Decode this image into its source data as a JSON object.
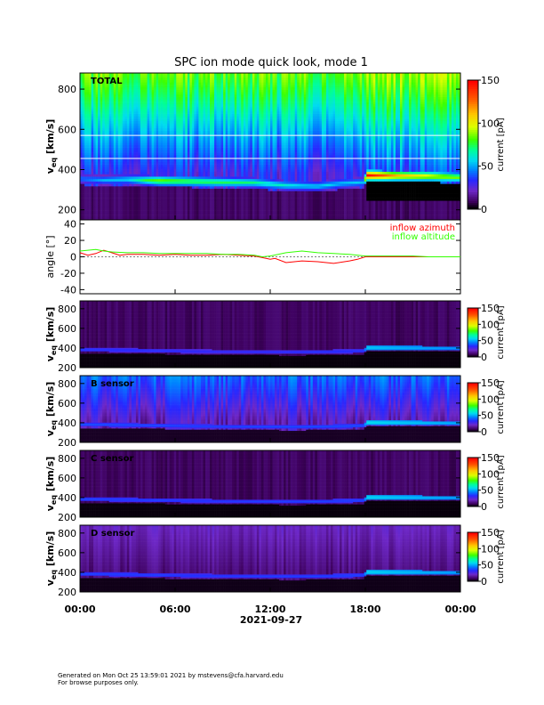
{
  "figure": {
    "title": "SPC ion mode quick look, mode 1",
    "date_label": "2021-09-27",
    "footer": [
      "Generated on Mon Oct 25 13:59:01 2021 by mstevens@cfa.harvard.edu",
      "For browse purposes only."
    ]
  },
  "chart_data": [
    {
      "type": "heatmap",
      "panel_label": "TOTAL",
      "ylabel_main": "v",
      "ylabel_sub": "eq",
      "ylabel_unit": "[km/s]",
      "ylim": [
        150,
        880
      ],
      "yticks": [
        "200",
        "400",
        "600",
        "800"
      ],
      "yticks_v": [
        200,
        400,
        600,
        800
      ],
      "colorbar": {
        "label": "current [pA]",
        "range": [
          0,
          150
        ],
        "ticks": [
          "0",
          "50",
          "100",
          "150"
        ],
        "ticks_v": [
          0,
          50,
          100,
          150
        ]
      },
      "background": "low",
      "marker_lines_v": [
        455,
        570
      ],
      "beam_profile": [
        {
          "t": 0,
          "v": 355
        },
        {
          "t": 1.5,
          "v": 348
        },
        {
          "t": 3,
          "v": 352
        },
        {
          "t": 5,
          "v": 345
        },
        {
          "t": 7,
          "v": 342
        },
        {
          "t": 9,
          "v": 338
        },
        {
          "t": 11,
          "v": 336
        },
        {
          "t": 13,
          "v": 322
        },
        {
          "t": 15,
          "v": 318
        },
        {
          "t": 16.5,
          "v": 332
        },
        {
          "t": 17.9,
          "v": 338
        },
        {
          "t": 18.1,
          "v": 372
        },
        {
          "t": 20,
          "v": 370
        },
        {
          "t": 22,
          "v": 368
        },
        {
          "t": 24,
          "v": 362
        }
      ],
      "beam_peak": [
        {
          "t": 0,
          "c": 45
        },
        {
          "t": 3,
          "c": 60
        },
        {
          "t": 5,
          "c": 90
        },
        {
          "t": 10,
          "c": 75
        },
        {
          "t": 14,
          "c": 60
        },
        {
          "t": 17.9,
          "c": 55
        },
        {
          "t": 18.1,
          "c": 150
        },
        {
          "t": 20,
          "c": 120
        },
        {
          "t": 24,
          "c": 90
        }
      ]
    },
    {
      "type": "line",
      "ylabel": "angle [°]",
      "ylim": [
        -45,
        45
      ],
      "yticks": [
        "-40",
        "-20",
        "0",
        "20",
        "40"
      ],
      "yticks_v": [
        -40,
        -20,
        0,
        20,
        40
      ],
      "series": [
        {
          "name": "inflow azimuth",
          "color": "#ff0000",
          "points": [
            [
              0,
              5
            ],
            [
              0.5,
              2
            ],
            [
              1,
              4
            ],
            [
              1.5,
              8
            ],
            [
              2,
              5
            ],
            [
              2.5,
              2
            ],
            [
              3,
              3
            ],
            [
              4,
              3
            ],
            [
              5,
              2
            ],
            [
              6,
              3
            ],
            [
              7,
              2
            ],
            [
              8,
              2
            ],
            [
              9,
              3
            ],
            [
              10,
              2
            ],
            [
              11,
              1
            ],
            [
              11.5,
              -1
            ],
            [
              12,
              -3
            ],
            [
              12.3,
              -2
            ],
            [
              13,
              -7
            ],
            [
              14,
              -5
            ],
            [
              15,
              -6
            ],
            [
              16,
              -8
            ],
            [
              17,
              -5
            ],
            [
              17.5,
              -3
            ],
            [
              18,
              0
            ],
            [
              19,
              0
            ],
            [
              20,
              0
            ],
            [
              21,
              0
            ],
            [
              22,
              0
            ],
            [
              23,
              0
            ],
            [
              24,
              0
            ]
          ]
        },
        {
          "name": "inflow altitude",
          "color": "#33ff00",
          "points": [
            [
              0,
              7
            ],
            [
              0.5,
              8
            ],
            [
              1,
              9
            ],
            [
              1.5,
              7
            ],
            [
              2,
              6
            ],
            [
              3,
              5
            ],
            [
              4,
              5
            ],
            [
              5,
              4
            ],
            [
              6,
              4
            ],
            [
              7,
              4
            ],
            [
              8,
              4
            ],
            [
              9,
              3
            ],
            [
              10,
              3
            ],
            [
              11,
              2
            ],
            [
              11.5,
              0
            ],
            [
              12,
              1
            ],
            [
              12.5,
              3
            ],
            [
              13,
              5
            ],
            [
              14,
              7
            ],
            [
              15,
              5
            ],
            [
              16,
              4
            ],
            [
              17,
              3
            ],
            [
              18,
              1
            ],
            [
              19,
              1
            ],
            [
              20,
              1
            ],
            [
              21,
              1
            ],
            [
              22,
              0
            ],
            [
              23,
              0
            ],
            [
              24,
              0
            ]
          ]
        }
      ]
    },
    {
      "type": "heatmap",
      "panel_label": "",
      "ylabel_main": "v",
      "ylabel_sub": "eq",
      "ylabel_unit": "[km/s]",
      "ylim": [
        200,
        880
      ],
      "yticks": [
        "200",
        "400",
        "600",
        "800"
      ],
      "yticks_v": [
        200,
        400,
        600,
        800
      ],
      "colorbar": {
        "label": "current [pA]",
        "range": [
          0,
          150
        ],
        "ticks": [
          "0",
          "50",
          "100",
          "150"
        ],
        "ticks_v": [
          0,
          50,
          100,
          150
        ]
      },
      "background": "dark",
      "beam_profile": [
        {
          "t": 0,
          "v": 385
        },
        {
          "t": 3,
          "v": 380
        },
        {
          "t": 7,
          "v": 368
        },
        {
          "t": 11,
          "v": 362
        },
        {
          "t": 14,
          "v": 360
        },
        {
          "t": 17.9,
          "v": 372
        },
        {
          "t": 18.1,
          "v": 405
        },
        {
          "t": 24,
          "v": 400
        }
      ],
      "beam_peak": [
        {
          "t": 0,
          "c": 28
        },
        {
          "t": 10,
          "c": 25
        },
        {
          "t": 17.9,
          "c": 28
        },
        {
          "t": 18.1,
          "c": 48
        },
        {
          "t": 24,
          "c": 40
        }
      ]
    },
    {
      "type": "heatmap",
      "panel_label": "B sensor",
      "ylabel_main": "v",
      "ylabel_sub": "eq",
      "ylabel_unit": "[km/s]",
      "ylim": [
        200,
        880
      ],
      "yticks": [
        "200",
        "400",
        "600",
        "800"
      ],
      "yticks_v": [
        200,
        400,
        600,
        800
      ],
      "colorbar": {
        "label": "current [pA]",
        "range": [
          0,
          150
        ],
        "ticks": [
          "0",
          "50",
          "100",
          "150"
        ],
        "ticks_v": [
          0,
          50,
          100,
          150
        ]
      },
      "background": "bright",
      "beam_profile": [
        {
          "t": 0,
          "v": 385
        },
        {
          "t": 3,
          "v": 380
        },
        {
          "t": 7,
          "v": 368
        },
        {
          "t": 11,
          "v": 362
        },
        {
          "t": 14,
          "v": 360
        },
        {
          "t": 17.9,
          "v": 372
        },
        {
          "t": 18.1,
          "v": 405
        },
        {
          "t": 24,
          "v": 400
        }
      ],
      "beam_peak": [
        {
          "t": 0,
          "c": 30
        },
        {
          "t": 10,
          "c": 28
        },
        {
          "t": 17.9,
          "c": 30
        },
        {
          "t": 18.1,
          "c": 50
        },
        {
          "t": 24,
          "c": 42
        }
      ]
    },
    {
      "type": "heatmap",
      "panel_label": "C sensor",
      "ylabel_main": "v",
      "ylabel_sub": "eq",
      "ylabel_unit": "[km/s]",
      "ylim": [
        200,
        880
      ],
      "yticks": [
        "200",
        "400",
        "600",
        "800"
      ],
      "yticks_v": [
        200,
        400,
        600,
        800
      ],
      "colorbar": {
        "label": "current [pA]",
        "range": [
          0,
          150
        ],
        "ticks": [
          "0",
          "50",
          "100",
          "150"
        ],
        "ticks_v": [
          0,
          50,
          100,
          150
        ]
      },
      "background": "dark",
      "beam_profile": [
        {
          "t": 0,
          "v": 385
        },
        {
          "t": 3,
          "v": 380
        },
        {
          "t": 7,
          "v": 368
        },
        {
          "t": 11,
          "v": 362
        },
        {
          "t": 14,
          "v": 360
        },
        {
          "t": 17.9,
          "v": 372
        },
        {
          "t": 18.1,
          "v": 405
        },
        {
          "t": 24,
          "v": 400
        }
      ],
      "beam_peak": [
        {
          "t": 0,
          "c": 30
        },
        {
          "t": 10,
          "c": 28
        },
        {
          "t": 17.9,
          "c": 30
        },
        {
          "t": 18.1,
          "c": 50
        },
        {
          "t": 24,
          "c": 42
        }
      ]
    },
    {
      "type": "heatmap",
      "panel_label": "D sensor",
      "ylabel_main": "v",
      "ylabel_sub": "eq",
      "ylabel_unit": "[km/s]",
      "ylim": [
        200,
        880
      ],
      "yticks": [
        "200",
        "400",
        "600",
        "800"
      ],
      "yticks_v": [
        200,
        400,
        600,
        800
      ],
      "colorbar": {
        "label": "current [pA]",
        "range": [
          0,
          150
        ],
        "ticks": [
          "0",
          "50",
          "100",
          "150"
        ],
        "ticks_v": [
          0,
          50,
          100,
          150
        ]
      },
      "background": "medium",
      "beam_profile": [
        {
          "t": 0,
          "v": 385
        },
        {
          "t": 3,
          "v": 380
        },
        {
          "t": 7,
          "v": 368
        },
        {
          "t": 11,
          "v": 362
        },
        {
          "t": 14,
          "v": 360
        },
        {
          "t": 17.9,
          "v": 372
        },
        {
          "t": 18.1,
          "v": 405
        },
        {
          "t": 24,
          "v": 400
        }
      ],
      "beam_peak": [
        {
          "t": 0,
          "c": 30
        },
        {
          "t": 10,
          "c": 28
        },
        {
          "t": 17.9,
          "c": 30
        },
        {
          "t": 18.1,
          "c": 50
        },
        {
          "t": 24,
          "c": 42
        }
      ]
    }
  ],
  "time_axis": {
    "range_hours": [
      0,
      24
    ],
    "ticks": [
      "00:00",
      "06:00",
      "12:00",
      "18:00",
      "00:00"
    ],
    "ticks_h": [
      0,
      6,
      12,
      18,
      24
    ]
  }
}
